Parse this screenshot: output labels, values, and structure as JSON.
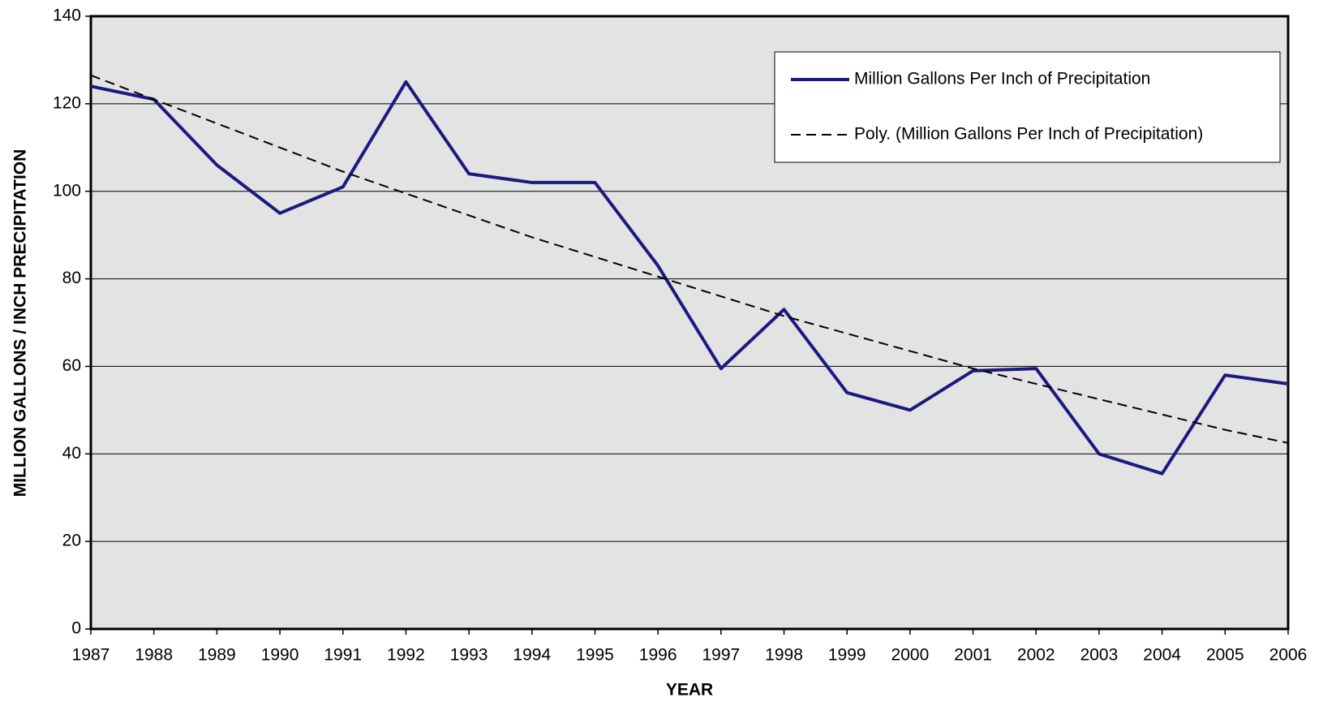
{
  "chart_data": {
    "type": "line",
    "x_label": "YEAR",
    "y_label": "MILLION GALLONS / INCH PRECIPITATION",
    "x": [
      1987,
      1988,
      1989,
      1990,
      1991,
      1992,
      1993,
      1994,
      1995,
      1996,
      1997,
      1998,
      1999,
      2000,
      2001,
      2002,
      2003,
      2004,
      2005,
      2006
    ],
    "xlim": [
      1987,
      2006
    ],
    "xticks": [
      1987,
      1988,
      1989,
      1990,
      1991,
      1992,
      1993,
      1994,
      1995,
      1996,
      1997,
      1998,
      1999,
      2000,
      2001,
      2002,
      2003,
      2004,
      2005,
      2006
    ],
    "ylim": [
      0,
      140
    ],
    "yticks": [
      0,
      20,
      40,
      60,
      80,
      100,
      120,
      140
    ],
    "grid": true,
    "legend": "top-right",
    "series": [
      {
        "name": "Million Gallons Per Inch of Precipitation",
        "color": "#1a1a80",
        "style": "solid",
        "values": [
          124,
          121,
          106,
          95,
          101,
          125,
          104,
          102,
          102,
          83,
          59.5,
          73,
          54,
          50,
          59,
          59.5,
          40,
          35.5,
          58,
          56
        ]
      },
      {
        "name": "Poly. (Million Gallons Per Inch of Precipitation)",
        "color": "#000000",
        "style": "dashed",
        "values": [
          126.5,
          121,
          115.5,
          110,
          104.5,
          99.5,
          94.5,
          89.5,
          85,
          80.5,
          76,
          71.5,
          67.5,
          63.5,
          59.5,
          56,
          52.5,
          49,
          45.5,
          42.5
        ]
      }
    ]
  }
}
